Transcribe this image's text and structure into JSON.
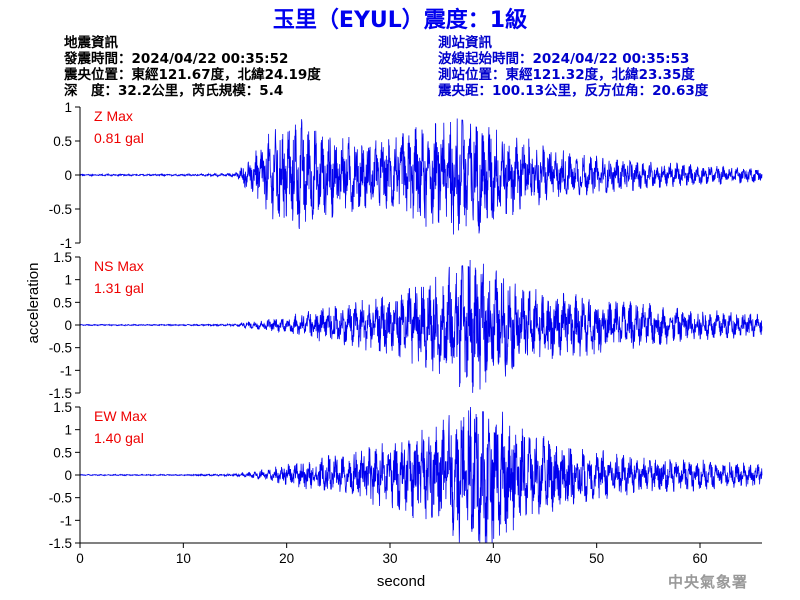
{
  "title": "玉里（EYUL）震度：1級",
  "event_info": {
    "heading": "地震資訊",
    "origin_time": "發震時間：2024/04/22 00:35:52",
    "epicenter": "震央位置：東經121.67度，北緯24.19度",
    "depth_magnitude": "深　度：32.2公里，芮氏規模：5.4"
  },
  "station_info": {
    "heading": "測站資訊",
    "arrival_time": "波線起始時間：2024/04/22 00:35:53",
    "station_location": "測站位置：東經121.32度，北緯23.35度",
    "distance": "震央距：100.13公里，反方位角：20.63度"
  },
  "footer": "中央氣象署",
  "colors": {
    "trace": "#0000ee",
    "title": "#0000ee",
    "max_label": "#ee0000",
    "station_text": "#0000cc"
  },
  "chart_data": [
    {
      "type": "line",
      "component": "Z",
      "max_label": "Z Max",
      "max_value": "0.81 gal",
      "ylim": [
        -1,
        1
      ],
      "yticks": [
        "1",
        "0.5",
        "0",
        "-0.5",
        "-1"
      ],
      "ytick_values": [
        1,
        0.5,
        0,
        -0.5,
        -1
      ],
      "x": [
        0,
        10,
        15,
        16,
        17,
        18,
        19,
        20,
        21,
        22,
        23,
        24,
        25,
        26,
        27,
        28,
        29,
        30,
        31,
        32,
        33,
        34,
        35,
        36,
        37,
        38,
        39,
        40,
        41,
        42,
        43,
        44,
        45,
        46,
        47,
        48,
        49,
        50,
        52,
        54,
        56,
        58,
        60,
        62,
        64,
        66
      ],
      "amplitude_envelope": [
        0.01,
        0.01,
        0.02,
        0.15,
        0.3,
        0.45,
        0.55,
        0.62,
        0.7,
        0.6,
        0.55,
        0.5,
        0.5,
        0.45,
        0.45,
        0.4,
        0.4,
        0.45,
        0.5,
        0.55,
        0.6,
        0.6,
        0.65,
        0.75,
        0.81,
        0.7,
        0.65,
        0.6,
        0.5,
        0.45,
        0.45,
        0.4,
        0.35,
        0.3,
        0.3,
        0.25,
        0.25,
        0.22,
        0.2,
        0.18,
        0.15,
        0.14,
        0.12,
        0.11,
        0.1,
        0.08
      ]
    },
    {
      "type": "line",
      "component": "NS",
      "max_label": "NS Max",
      "max_value": "1.31 gal",
      "ylim": [
        -1.5,
        1.5
      ],
      "yticks": [
        "1.5",
        "1",
        "0.5",
        "0",
        "-0.5",
        "-1",
        "-1.5"
      ],
      "ytick_values": [
        1.5,
        1,
        0.5,
        0,
        -0.5,
        -1,
        -1.5
      ],
      "x": [
        0,
        10,
        15,
        16,
        17,
        18,
        19,
        20,
        21,
        22,
        23,
        24,
        25,
        26,
        27,
        28,
        29,
        30,
        31,
        32,
        33,
        34,
        35,
        36,
        37,
        38,
        39,
        40,
        41,
        42,
        43,
        44,
        45,
        46,
        47,
        48,
        49,
        50,
        52,
        54,
        56,
        58,
        60,
        62,
        64,
        66
      ],
      "amplitude_envelope": [
        0.01,
        0.01,
        0.02,
        0.05,
        0.08,
        0.1,
        0.12,
        0.15,
        0.2,
        0.25,
        0.3,
        0.3,
        0.35,
        0.4,
        0.45,
        0.45,
        0.5,
        0.55,
        0.6,
        0.7,
        0.75,
        0.8,
        0.9,
        1.1,
        1.31,
        1.2,
        1.1,
        1.0,
        0.9,
        0.8,
        0.75,
        0.7,
        0.7,
        0.65,
        0.6,
        0.55,
        0.55,
        0.5,
        0.45,
        0.4,
        0.35,
        0.3,
        0.28,
        0.25,
        0.22,
        0.2
      ]
    },
    {
      "type": "line",
      "component": "EW",
      "max_label": "EW Max",
      "max_value": "1.40 gal",
      "ylim": [
        -1.5,
        1.5
      ],
      "yticks": [
        "1.5",
        "1",
        "0.5",
        "0",
        "-0.5",
        "-1",
        "-1.5"
      ],
      "ytick_values": [
        1.5,
        1,
        0.5,
        0,
        -0.5,
        -1,
        -1.5
      ],
      "x": [
        0,
        10,
        15,
        16,
        17,
        18,
        19,
        20,
        21,
        22,
        23,
        24,
        25,
        26,
        27,
        28,
        29,
        30,
        31,
        32,
        33,
        34,
        35,
        36,
        37,
        38,
        39,
        40,
        41,
        42,
        43,
        44,
        45,
        46,
        47,
        48,
        49,
        50,
        52,
        54,
        56,
        58,
        60,
        62,
        64,
        66
      ],
      "amplitude_envelope": [
        0.01,
        0.01,
        0.02,
        0.05,
        0.08,
        0.1,
        0.15,
        0.2,
        0.25,
        0.25,
        0.3,
        0.35,
        0.35,
        0.4,
        0.45,
        0.5,
        0.55,
        0.6,
        0.65,
        0.75,
        0.8,
        0.85,
        0.95,
        1.1,
        1.25,
        1.3,
        1.4,
        1.3,
        1.1,
        0.95,
        0.85,
        0.75,
        0.7,
        0.65,
        0.6,
        0.55,
        0.5,
        0.45,
        0.4,
        0.35,
        0.32,
        0.3,
        0.27,
        0.25,
        0.22,
        0.2
      ]
    }
  ],
  "x_axis": {
    "label": "second",
    "xlim": [
      0,
      66
    ],
    "ticks": [
      "0",
      "10",
      "20",
      "30",
      "40",
      "50",
      "60"
    ],
    "tick_values": [
      0,
      10,
      20,
      30,
      40,
      50,
      60
    ]
  },
  "y_axis": {
    "label": "acceleration"
  }
}
